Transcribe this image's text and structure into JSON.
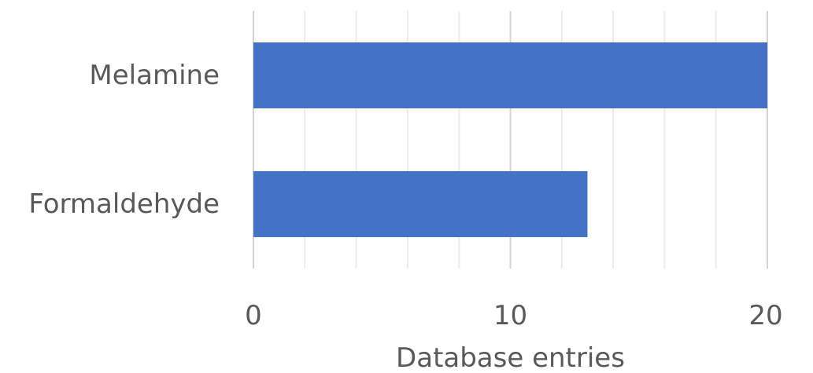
{
  "chart_data": {
    "type": "bar",
    "orientation": "horizontal",
    "categories": [
      "Melamine",
      "Formaldehyde"
    ],
    "values": [
      20,
      13
    ],
    "xlabel": "Database entries",
    "xlim": [
      0,
      20
    ],
    "major_ticks": [
      0,
      10,
      20
    ],
    "minor_tick_step": 2,
    "grid": true,
    "bar_color": "#4472C4",
    "text_color": "#595959"
  }
}
